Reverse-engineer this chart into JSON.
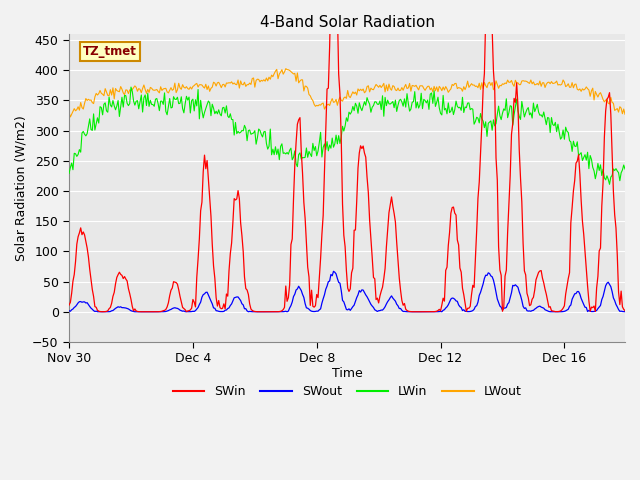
{
  "title": "4-Band Solar Radiation",
  "xlabel": "Time",
  "ylabel": "Solar Radiation (W/m2)",
  "ylim": [
    -50,
    460
  ],
  "legend_labels": [
    "SWin",
    "SWout",
    "LWin",
    "LWout"
  ],
  "legend_colors": [
    "#ff0000",
    "#0000ff",
    "#00ee00",
    "#ffa500"
  ],
  "annotation_text": "TZ_tmet",
  "annotation_bg": "#ffffc0",
  "annotation_border": "#cc8800",
  "annotation_text_color": "#880000",
  "plot_bg_color": "#e8e8e8",
  "fig_bg_color": "#f2f2f2",
  "grid_color": "#ffffff",
  "xtick_labels": [
    "Nov 30",
    "Dec 4",
    "Dec 8",
    "Dec 12",
    "Dec 16"
  ],
  "xtick_positions": [
    0,
    96,
    192,
    288,
    384
  ],
  "total_points": 432,
  "SWin_color": "#ff0000",
  "SWout_color": "#0000ff",
  "LWin_color": "#00ee00",
  "LWout_color": "#ffa500"
}
